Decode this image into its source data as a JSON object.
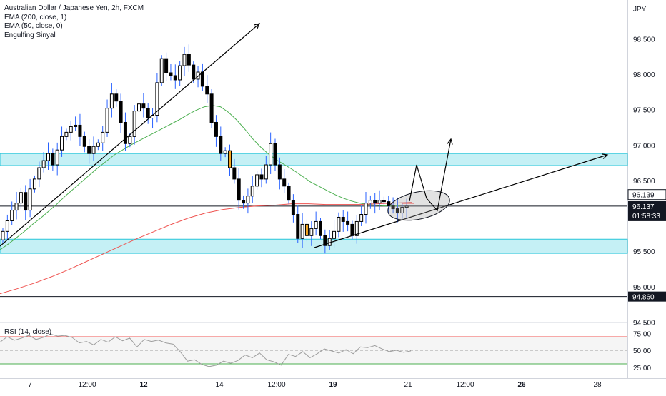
{
  "legend": {
    "symbol": "Australian Dollar / Japanese Yen, 2h, FXCM",
    "ema200": "EMA (200, close, 1)",
    "ema50": "EMA (50, close, 0)",
    "indicator": "Engulfing Sinyal"
  },
  "rsi_label": "RSI (14, close)",
  "currency": "JPY",
  "price_badges": {
    "upper": "96.139",
    "current": "96.137",
    "countdown": "01:58:33",
    "support": "94.860"
  },
  "colors": {
    "up_candle": "#000000",
    "down_candle": "#000000",
    "wick": "#2962ff",
    "engulfing": "#f5a623",
    "ema200": "#ef5350",
    "ema50": "#4caf50",
    "zone_fill": "#b2ebf2",
    "zone_border": "#26c6da"
  },
  "chart_data": [
    {
      "type": "candlestick",
      "title": "Australian Dollar / Japanese Yen, 2h, FXCM",
      "ylim": [
        94.5,
        98.9
      ],
      "y_ticks": [
        "98.500",
        "98.000",
        "97.500",
        "97.000",
        "96.500",
        "96.000",
        "95.500",
        "95.000",
        "94.500"
      ],
      "x_ticks": [
        "7",
        "12:00",
        "12",
        "14",
        "12:00",
        "19",
        "21",
        "12:00",
        "26",
        "28"
      ],
      "bold_x_ticks": [
        "12",
        "19",
        "26"
      ],
      "closes": [
        95.78,
        95.93,
        96.08,
        96.18,
        96.33,
        96.08,
        96.38,
        96.52,
        96.68,
        96.78,
        96.88,
        96.72,
        96.93,
        97.12,
        97.18,
        97.26,
        97.28,
        97.12,
        96.98,
        96.88,
        96.98,
        97.03,
        97.18,
        97.52,
        97.72,
        97.62,
        97.32,
        97.02,
        97.12,
        97.48,
        97.58,
        97.52,
        97.38,
        97.42,
        97.88,
        98.22,
        98.02,
        97.98,
        97.92,
        98.12,
        98.28,
        98.13,
        97.93,
        98.03,
        97.83,
        97.72,
        97.32,
        97.12,
        96.88,
        96.92,
        96.68,
        96.52,
        96.22,
        96.18,
        96.28,
        96.42,
        96.58,
        96.52,
        96.72,
        97.02,
        96.72,
        96.52,
        96.42,
        96.22,
        96.02,
        95.68,
        95.88,
        95.72,
        95.82,
        95.92,
        95.72,
        95.58,
        95.68,
        95.78,
        95.98,
        95.92,
        95.88,
        95.72,
        95.92,
        96.02,
        96.18,
        96.22,
        96.18,
        96.22,
        96.2,
        96.14,
        96.1,
        96.04,
        96.12,
        96.137
      ],
      "ema50": [
        95.52,
        95.6,
        95.69,
        95.78,
        95.88,
        95.97,
        96.07,
        96.17,
        96.28,
        96.38,
        96.48,
        96.58,
        96.68,
        96.77,
        96.86,
        96.93,
        97.0,
        97.06,
        97.12,
        97.18,
        97.24,
        97.3,
        97.36,
        97.43,
        97.49,
        97.54,
        97.56,
        97.54,
        97.46,
        97.35,
        97.22,
        97.08,
        96.96,
        96.86,
        96.78,
        96.71,
        96.64,
        96.56,
        96.48,
        96.42,
        96.36,
        96.3,
        96.25,
        96.21,
        96.18,
        96.16,
        96.15,
        96.14,
        96.14,
        96.14
      ],
      "ema200": [
        94.9,
        94.97,
        95.05,
        95.14,
        95.24,
        95.35,
        95.46,
        95.57,
        95.68,
        95.78,
        95.88,
        95.97,
        96.04,
        96.09,
        96.12,
        96.14,
        96.15,
        96.17,
        96.17,
        96.16,
        96.16,
        96.16,
        96.17,
        96.18,
        96.19
      ]
    },
    {
      "type": "line",
      "title": "RSI (14, close)",
      "ylim": [
        22,
        80
      ],
      "y_ticks": [
        "75.00",
        "50.00",
        "25.00"
      ],
      "bands": [
        30,
        50,
        70
      ],
      "values": [
        62,
        70,
        65,
        68,
        72,
        66,
        69,
        74,
        71,
        72,
        69,
        61,
        63,
        58,
        66,
        62,
        70,
        64,
        68,
        55,
        66,
        63,
        65,
        61,
        59,
        48,
        34,
        36,
        29,
        26,
        28,
        34,
        31,
        35,
        43,
        39,
        46,
        36,
        33,
        28,
        44,
        41,
        48,
        39,
        45,
        52,
        49,
        46,
        51,
        45,
        55,
        54,
        57,
        52,
        48,
        50,
        47,
        49
      ]
    }
  ]
}
